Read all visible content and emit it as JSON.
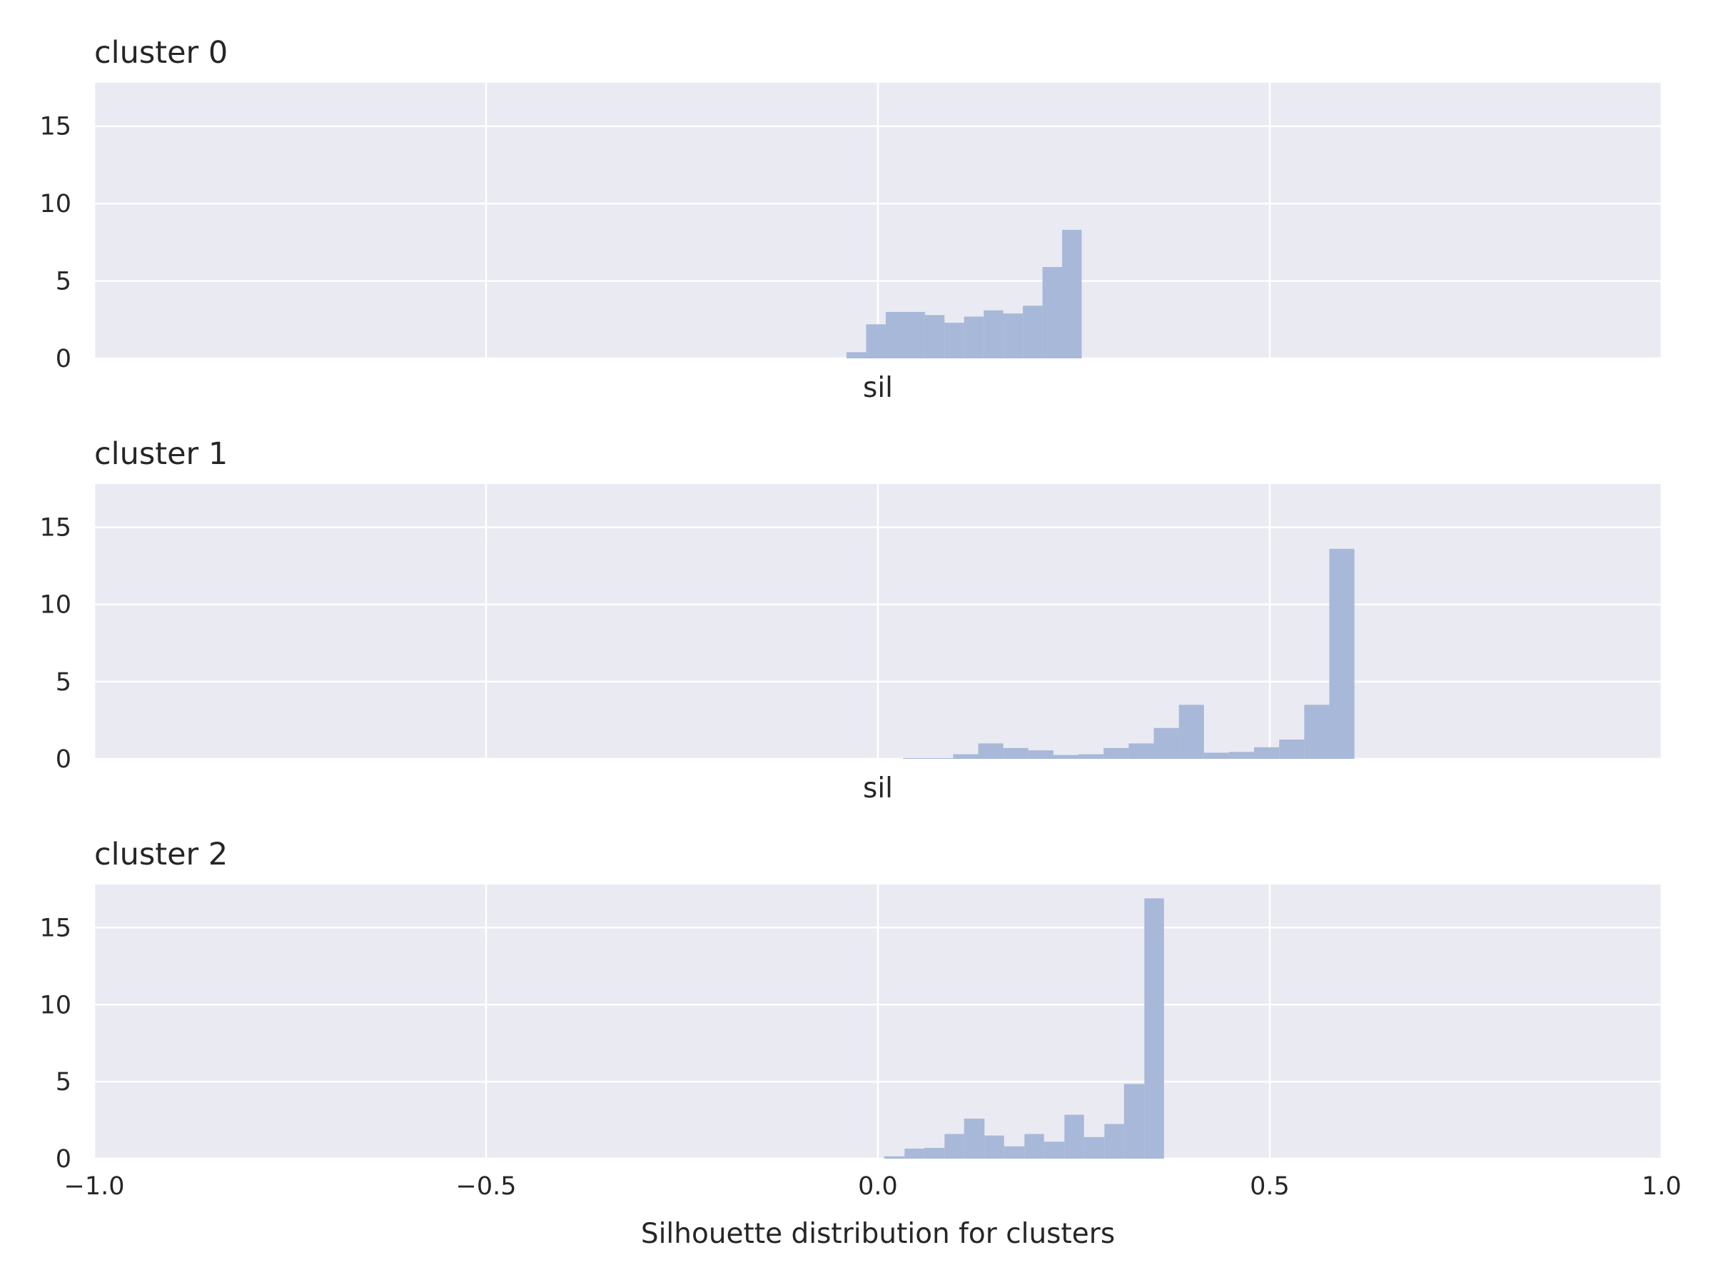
{
  "colors": {
    "background": "#eaeaf2",
    "grid": "#ffffff",
    "bar": "#a8b8d8",
    "text": "#262626"
  },
  "chart_data": [
    {
      "type": "histogram",
      "title": "cluster 0",
      "xlabel": "sil",
      "ylabel": "",
      "xlim": [
        -1.0,
        1.0
      ],
      "ylim": [
        0,
        17.8
      ],
      "xticks": [
        -1.0,
        -0.5,
        0.0,
        0.5,
        1.0
      ],
      "xtick_labels": [
        "",
        "",
        "",
        "",
        ""
      ],
      "yticks": [
        0,
        5,
        10,
        15
      ],
      "ytick_labels": [
        "0",
        "5",
        "10",
        "15"
      ],
      "grid": true,
      "bin_width": 0.025,
      "bins": [
        {
          "x0": -0.04,
          "x1": -0.015,
          "value": 0.4
        },
        {
          "x0": -0.015,
          "x1": 0.01,
          "value": 2.2
        },
        {
          "x0": 0.01,
          "x1": 0.035,
          "value": 3.0
        },
        {
          "x0": 0.035,
          "x1": 0.06,
          "value": 3.0
        },
        {
          "x0": 0.06,
          "x1": 0.085,
          "value": 2.8
        },
        {
          "x0": 0.085,
          "x1": 0.11,
          "value": 2.3
        },
        {
          "x0": 0.11,
          "x1": 0.135,
          "value": 2.7
        },
        {
          "x0": 0.135,
          "x1": 0.16,
          "value": 3.1
        },
        {
          "x0": 0.16,
          "x1": 0.185,
          "value": 2.9
        },
        {
          "x0": 0.185,
          "x1": 0.21,
          "value": 3.4
        },
        {
          "x0": 0.21,
          "x1": 0.235,
          "value": 5.9
        },
        {
          "x0": 0.235,
          "x1": 0.26,
          "value": 8.3
        }
      ]
    },
    {
      "type": "histogram",
      "title": "cluster 1",
      "xlabel": "sil",
      "ylabel": "",
      "xlim": [
        -1.0,
        1.0
      ],
      "ylim": [
        0,
        17.8
      ],
      "xticks": [
        -1.0,
        -0.5,
        0.0,
        0.5,
        1.0
      ],
      "xtick_labels": [
        "",
        "",
        "",
        "",
        ""
      ],
      "yticks": [
        0,
        5,
        10,
        15
      ],
      "ytick_labels": [
        "0",
        "5",
        "10",
        "15"
      ],
      "grid": true,
      "bin_width": 0.032,
      "bins": [
        {
          "x0": 0.032,
          "x1": 0.064,
          "value": 0.05
        },
        {
          "x0": 0.064,
          "x1": 0.096,
          "value": 0.05
        },
        {
          "x0": 0.096,
          "x1": 0.128,
          "value": 0.3
        },
        {
          "x0": 0.128,
          "x1": 0.16,
          "value": 1.0
        },
        {
          "x0": 0.16,
          "x1": 0.192,
          "value": 0.7
        },
        {
          "x0": 0.192,
          "x1": 0.224,
          "value": 0.55
        },
        {
          "x0": 0.224,
          "x1": 0.256,
          "value": 0.25
        },
        {
          "x0": 0.256,
          "x1": 0.288,
          "value": 0.3
        },
        {
          "x0": 0.288,
          "x1": 0.32,
          "value": 0.7
        },
        {
          "x0": 0.32,
          "x1": 0.352,
          "value": 1.0
        },
        {
          "x0": 0.352,
          "x1": 0.384,
          "value": 2.0
        },
        {
          "x0": 0.384,
          "x1": 0.416,
          "value": 3.5
        },
        {
          "x0": 0.416,
          "x1": 0.448,
          "value": 0.4
        },
        {
          "x0": 0.448,
          "x1": 0.48,
          "value": 0.45
        },
        {
          "x0": 0.48,
          "x1": 0.512,
          "value": 0.75
        },
        {
          "x0": 0.512,
          "x1": 0.544,
          "value": 1.25
        },
        {
          "x0": 0.544,
          "x1": 0.576,
          "value": 3.5
        },
        {
          "x0": 0.576,
          "x1": 0.608,
          "value": 13.6
        }
      ]
    },
    {
      "type": "histogram",
      "title": "cluster 2",
      "xlabel": "Silhouette distribution for clusters",
      "ylabel": "",
      "xlim": [
        -1.0,
        1.0
      ],
      "ylim": [
        0,
        17.8
      ],
      "xticks": [
        -1.0,
        -0.5,
        0.0,
        0.5,
        1.0
      ],
      "xtick_labels": [
        "−1.0",
        "−0.5",
        "0.0",
        "0.5",
        "1.0"
      ],
      "yticks": [
        0,
        5,
        10,
        15
      ],
      "ytick_labels": [
        "0",
        "5",
        "10",
        "15"
      ],
      "grid": true,
      "bin_width": 0.0255,
      "bins": [
        {
          "x0": 0.008,
          "x1": 0.034,
          "value": 0.15
        },
        {
          "x0": 0.034,
          "x1": 0.059,
          "value": 0.65
        },
        {
          "x0": 0.059,
          "x1": 0.085,
          "value": 0.7
        },
        {
          "x0": 0.085,
          "x1": 0.11,
          "value": 1.6
        },
        {
          "x0": 0.11,
          "x1": 0.136,
          "value": 2.6
        },
        {
          "x0": 0.136,
          "x1": 0.161,
          "value": 1.5
        },
        {
          "x0": 0.161,
          "x1": 0.187,
          "value": 0.8
        },
        {
          "x0": 0.187,
          "x1": 0.212,
          "value": 1.6
        },
        {
          "x0": 0.212,
          "x1": 0.238,
          "value": 1.1
        },
        {
          "x0": 0.238,
          "x1": 0.263,
          "value": 2.85
        },
        {
          "x0": 0.263,
          "x1": 0.289,
          "value": 1.4
        },
        {
          "x0": 0.289,
          "x1": 0.314,
          "value": 2.25
        },
        {
          "x0": 0.314,
          "x1": 0.34,
          "value": 4.85
        },
        {
          "x0": 0.34,
          "x1": 0.365,
          "value": 16.9
        }
      ]
    }
  ]
}
